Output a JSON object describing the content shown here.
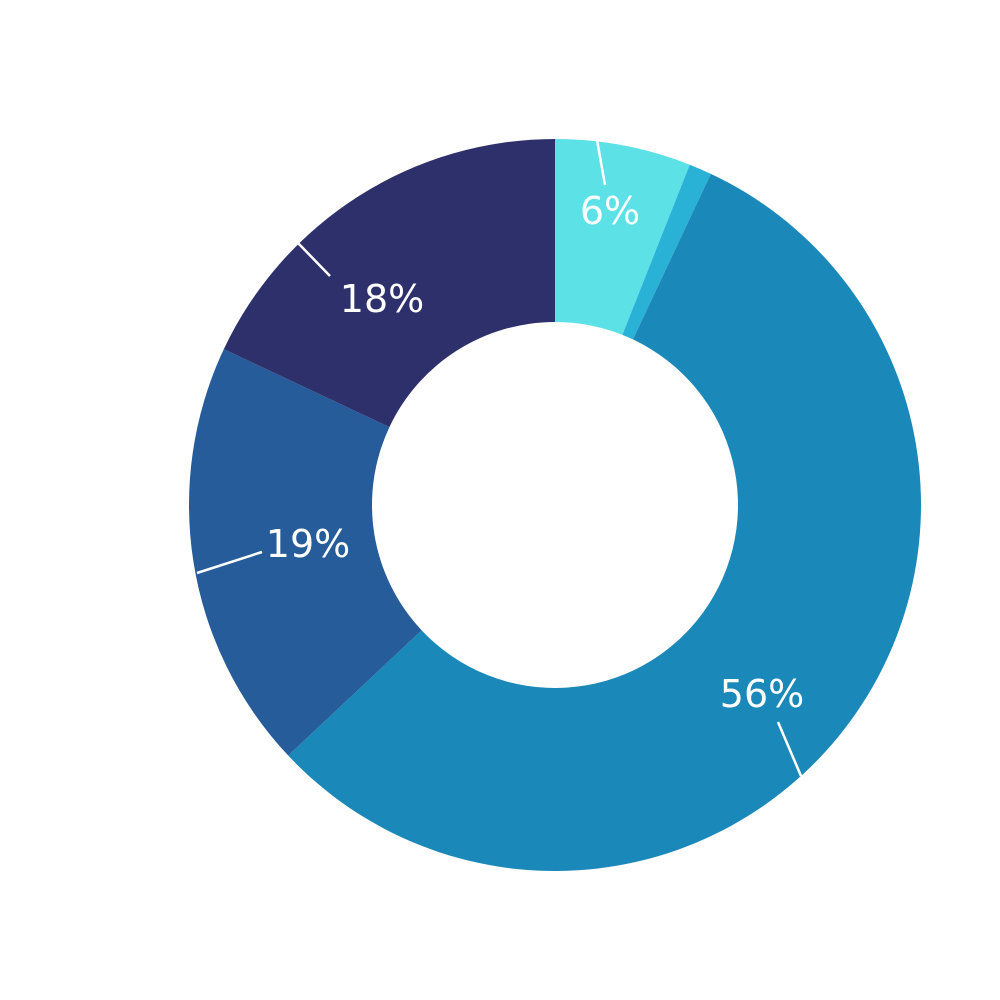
{
  "chart_data": {
    "type": "pie",
    "donut": true,
    "title": "",
    "slices": [
      {
        "value": 6,
        "label": "6%",
        "color": "#5ce1e6"
      },
      {
        "value": 1,
        "label": "",
        "color": "#2ab2d6"
      },
      {
        "value": 56,
        "label": "56%",
        "color": "#1a88b8"
      },
      {
        "value": 19,
        "label": "19%",
        "color": "#265c99"
      },
      {
        "value": 18,
        "label": "18%",
        "color": "#2e306c"
      }
    ],
    "start": "top",
    "direction": "clockwise",
    "label_color": "#ffffff"
  }
}
